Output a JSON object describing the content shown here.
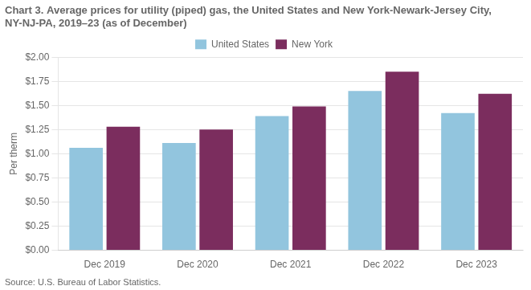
{
  "chart_data": {
    "type": "bar",
    "title": "Chart 3. Average prices for utility (piped) gas, the United States and New York-Newark-Jersey City, NY-NJ-PA, 2019–23 (as of December)",
    "ylabel": "Per therm",
    "source": "Source: U.S. Bureau of Labor Statistics.",
    "categories": [
      "Dec 2019",
      "Dec 2020",
      "Dec 2021",
      "Dec 2022",
      "Dec 2023"
    ],
    "series": [
      {
        "name": "United States",
        "color": "#92c5de",
        "values": [
          1.06,
          1.11,
          1.39,
          1.65,
          1.42
        ]
      },
      {
        "name": "New York",
        "color": "#7b2d5e",
        "values": [
          1.28,
          1.25,
          1.49,
          1.85,
          1.62
        ]
      }
    ],
    "ylim": [
      0,
      2.0
    ],
    "yticks": [
      {
        "value": 0.0,
        "label": "$0.00"
      },
      {
        "value": 0.25,
        "label": "$0.25"
      },
      {
        "value": 0.5,
        "label": "$0.50"
      },
      {
        "value": 0.75,
        "label": "$0.75"
      },
      {
        "value": 1.0,
        "label": "$1.00"
      },
      {
        "value": 1.25,
        "label": "$1.25"
      },
      {
        "value": 1.5,
        "label": "$1.50"
      },
      {
        "value": 1.75,
        "label": "$1.75"
      },
      {
        "value": 2.0,
        "label": "$2.00"
      }
    ],
    "grid": true,
    "legend": "top"
  }
}
